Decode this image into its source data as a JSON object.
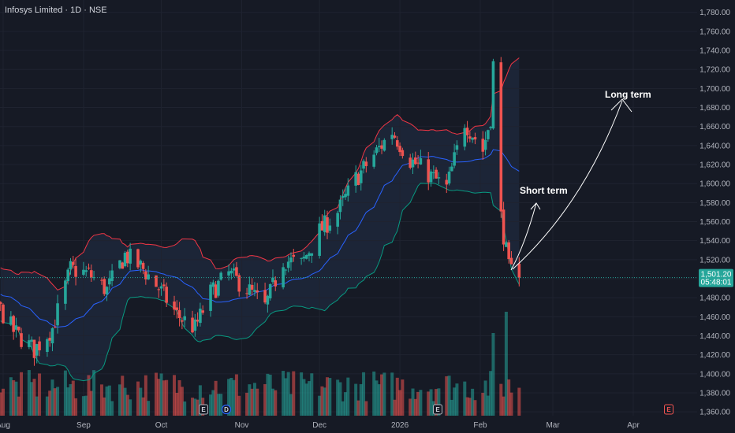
{
  "header": {
    "title": "Infosys Limited · 1D · NSE"
  },
  "chart_data": {
    "type": "candlestick",
    "yaxis": {
      "ticks": [
        "1,780.00",
        "1,760.00",
        "1,740.00",
        "1,720.00",
        "1,700.00",
        "1,680.00",
        "1,660.00",
        "1,640.00",
        "1,620.00",
        "1,600.00",
        "1,580.00",
        "1,560.00",
        "1,540.00",
        "1,520.00",
        "1,500.00",
        "1,480.00",
        "1,460.00",
        "1,440.00",
        "1,420.00",
        "1,400.00",
        "1,380.00",
        "1,360.00"
      ],
      "values": [
        1780,
        1760,
        1740,
        1720,
        1700,
        1680,
        1660,
        1640,
        1620,
        1600,
        1580,
        1560,
        1540,
        1520,
        1500,
        1480,
        1460,
        1440,
        1420,
        1400,
        1380,
        1360
      ],
      "range": [
        1356,
        1793
      ]
    },
    "xaxis": {
      "labels": [
        "Aug",
        "Sep",
        "Oct",
        "Nov",
        "Dec",
        "2026",
        "Feb",
        "Mar",
        "Apr"
      ],
      "dates": [
        "2025-08-01",
        "2025-09-01",
        "2025-10-01",
        "2025-11-01",
        "2025-12-01",
        "2026-01-01",
        "2026-02-01",
        "2026-03-01",
        "2026-04-01"
      ]
    },
    "last_price": {
      "value": 1501.2,
      "label": "1,501.20",
      "countdown": "05:48:01"
    },
    "colors": {
      "up": "#26a69a",
      "down": "#ef5350",
      "upper_band": "#f23645",
      "basis": "#2962ff",
      "lower_band": "#089981",
      "band_fill": "#1f2a3d"
    },
    "anchors": [
      [
        "2025-07-28",
        1480
      ],
      [
        "2025-08-05",
        1445
      ],
      [
        "2025-08-13",
        1425
      ],
      [
        "2025-08-20",
        1448
      ],
      [
        "2025-08-27",
        1510
      ],
      [
        "2025-09-03",
        1505
      ],
      [
        "2025-09-10",
        1488
      ],
      [
        "2025-09-17",
        1525
      ],
      [
        "2025-09-24",
        1510
      ],
      [
        "2025-09-30",
        1490
      ],
      [
        "2025-10-07",
        1462
      ],
      [
        "2025-10-14",
        1448
      ],
      [
        "2025-10-20",
        1485
      ],
      [
        "2025-10-27",
        1505
      ],
      [
        "2025-11-03",
        1490
      ],
      [
        "2025-11-10",
        1470
      ],
      [
        "2025-11-17",
        1520
      ],
      [
        "2025-11-24",
        1515
      ],
      [
        "2025-12-01",
        1550
      ],
      [
        "2025-12-08",
        1570
      ],
      [
        "2025-12-15",
        1605
      ],
      [
        "2025-12-22",
        1630
      ],
      [
        "2025-12-29",
        1655
      ],
      [
        "2026-01-05",
        1625
      ],
      [
        "2026-01-12",
        1610
      ],
      [
        "2026-01-19",
        1595
      ],
      [
        "2026-01-26",
        1665
      ],
      [
        "2026-02-02",
        1635
      ],
      [
        "2026-02-05",
        1670
      ],
      [
        "2026-02-06",
        1725
      ],
      [
        "2026-02-09",
        1565
      ],
      [
        "2026-02-12",
        1510
      ],
      [
        "2026-02-16",
        1501.2
      ]
    ],
    "annotations": [
      {
        "label": "Short term"
      },
      {
        "label": "Long term"
      }
    ],
    "events": [
      "E",
      "D",
      "E",
      "E"
    ]
  }
}
